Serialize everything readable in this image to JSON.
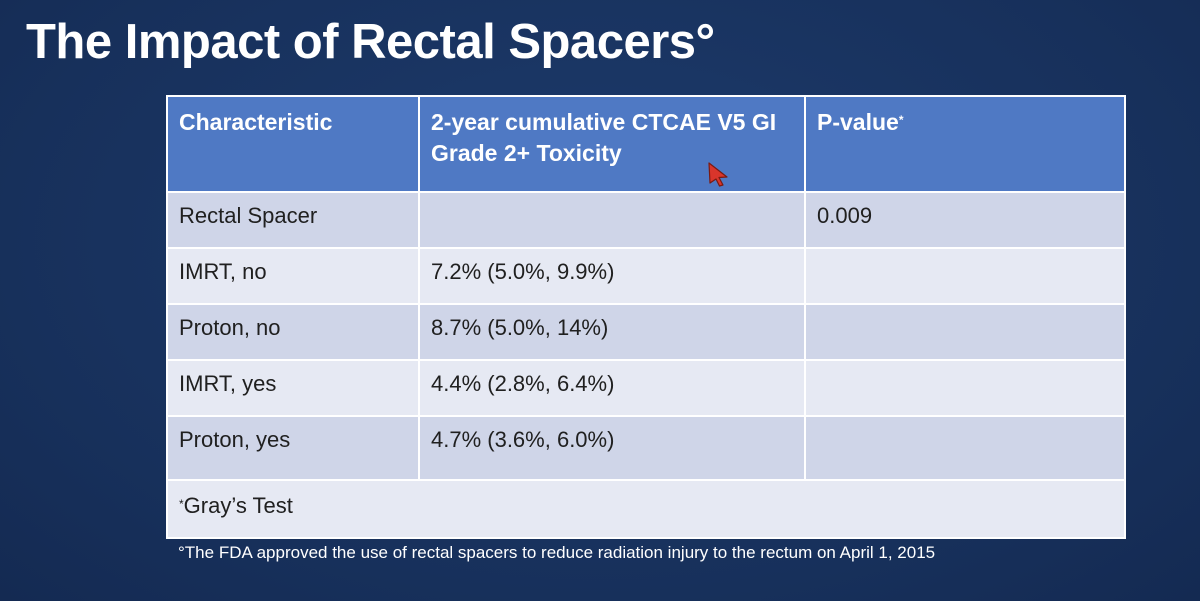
{
  "slide": {
    "title": "The Impact of Rectal Spacers°",
    "footnote": "°The FDA approved the use of rectal spacers to reduce radiation injury to the rectum on April 1, 2015"
  },
  "table": {
    "headers": {
      "characteristic": "Characteristic",
      "toxicity": "2-year cumulative CTCAE V5 GI Grade 2+ Toxicity",
      "pvalue": "P-value",
      "pvalue_mark": "*"
    },
    "rows": [
      {
        "characteristic": "Rectal Spacer",
        "toxicity": "",
        "pvalue": "0.009"
      },
      {
        "characteristic": "IMRT, no",
        "toxicity": "7.2% (5.0%, 9.9%)",
        "pvalue": ""
      },
      {
        "characteristic": "Proton, no",
        "toxicity": "8.7% (5.0%, 14%)",
        "pvalue": ""
      },
      {
        "characteristic": "IMRT, yes",
        "toxicity": "4.4% (2.8%, 6.4%)",
        "pvalue": ""
      },
      {
        "characteristic": "Proton, yes",
        "toxicity": "4.7% (3.6%, 6.0%)",
        "pvalue": ""
      }
    ],
    "footer_mark": "*",
    "footer_text": "Gray’s Test"
  },
  "colors": {
    "background": "#17305b",
    "header": "#4f79c4",
    "row_dark": "#cfd5e8",
    "row_light": "#e6e9f3",
    "cursor": "#d9352b"
  },
  "icons": {
    "cursor": "mouse-pointer-icon"
  }
}
